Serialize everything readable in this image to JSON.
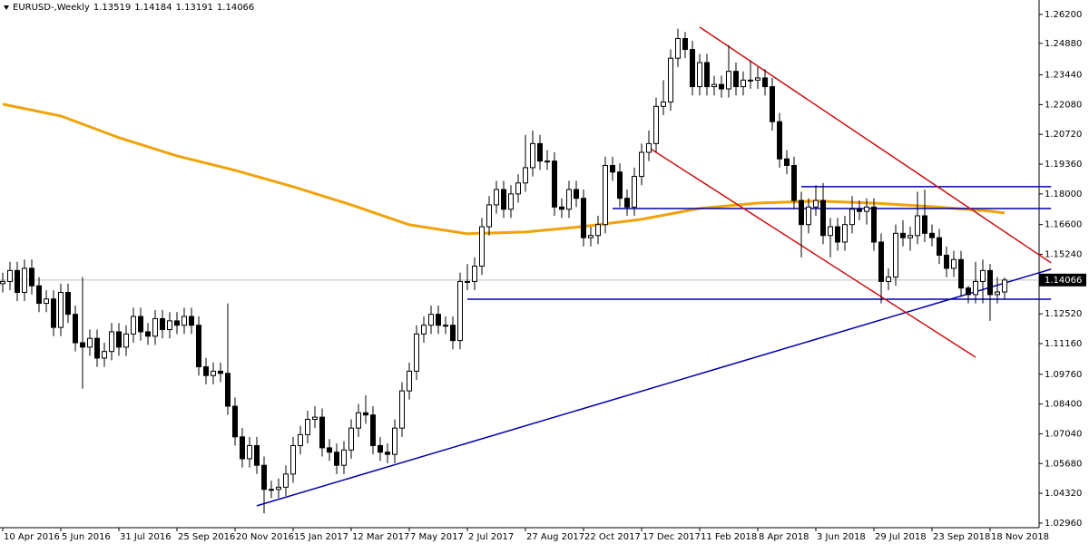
{
  "chart_data": {
    "type": "candlestick",
    "title": "EURUSD-,Weekly",
    "up_color": "#ffffff",
    "down_color": "#000000",
    "categories": [
      "10 Apr 2016",
      null,
      null,
      null,
      null,
      null,
      null,
      null,
      "5 Jun 2016",
      null,
      null,
      null,
      null,
      null,
      null,
      null,
      "31 Jul 2016",
      null,
      null,
      null,
      null,
      null,
      null,
      null,
      "25 Sep 2016",
      null,
      null,
      null,
      null,
      null,
      null,
      null,
      "20 Nov 2016",
      null,
      null,
      null,
      null,
      null,
      null,
      null,
      "15 Jan 2017",
      null,
      null,
      null,
      null,
      null,
      null,
      null,
      "12 Mar 2017",
      null,
      null,
      null,
      null,
      null,
      null,
      null,
      "7 May 2017",
      null,
      null,
      null,
      null,
      null,
      null,
      null,
      "2 Jul 2017",
      null,
      null,
      null,
      null,
      null,
      null,
      null,
      "27 Aug 2017",
      null,
      null,
      null,
      null,
      null,
      null,
      null,
      "22 Oct 2017",
      null,
      null,
      null,
      null,
      null,
      null,
      null,
      "17 Dec 2017",
      null,
      null,
      null,
      null,
      null,
      null,
      null,
      "11 Feb 2018",
      null,
      null,
      null,
      null,
      null,
      null,
      null,
      "8 Apr 2018",
      null,
      null,
      null,
      null,
      null,
      null,
      null,
      "3 Jun 2018",
      null,
      null,
      null,
      null,
      null,
      null,
      null,
      "29 Jul 2018",
      null,
      null,
      null,
      null,
      null,
      null,
      null,
      "23 Sep 2018",
      null,
      null,
      null,
      null,
      null,
      null,
      null,
      "18 Nov 2018",
      null,
      null
    ],
    "open": [
      1.139,
      1.14,
      1.145,
      1.135,
      1.146,
      1.138,
      1.13,
      1.132,
      1.119,
      1.135,
      1.125,
      1.112,
      1.11,
      1.114,
      1.105,
      1.108,
      1.117,
      1.11,
      1.116,
      1.124,
      1.117,
      1.115,
      1.123,
      1.118,
      1.122,
      1.12,
      1.124,
      1.12,
      1.101,
      1.097,
      1.099,
      1.098,
      1.083,
      1.069,
      1.059,
      1.065,
      1.056,
      1.045,
      1.045,
      1.046,
      1.052,
      1.065,
      1.07,
      1.077,
      1.078,
      1.064,
      1.062,
      1.056,
      1.063,
      1.073,
      1.08,
      1.079,
      1.065,
      1.062,
      1.061,
      1.073,
      1.09,
      1.099,
      1.116,
      1.12,
      1.125,
      1.12,
      1.12,
      1.113,
      1.14,
      1.14,
      1.147,
      1.165,
      1.175,
      1.182,
      1.173,
      1.18,
      1.185,
      1.192,
      1.203,
      1.195,
      1.195,
      1.174,
      1.173,
      1.182,
      1.178,
      1.16,
      1.161,
      1.166,
      1.193,
      1.19,
      1.178,
      1.174,
      1.188,
      1.199,
      1.203,
      1.22,
      1.222,
      1.242,
      1.251,
      1.246,
      1.229,
      1.24,
      1.229,
      1.23,
      1.228,
      1.236,
      1.229,
      1.232,
      1.232,
      1.233,
      1.229,
      1.213,
      1.196,
      1.193,
      1.177,
      1.166,
      1.174,
      1.177,
      1.161,
      1.165,
      1.158,
      1.166,
      1.173,
      1.172,
      1.174,
      1.158,
      1.14,
      1.142,
      1.162,
      1.16,
      1.161,
      1.17,
      1.162,
      1.16,
      1.152,
      1.146,
      1.15,
      1.137,
      1.134,
      1.14,
      1.145,
      1.134,
      1.13519
    ],
    "high": [
      1.144,
      1.149,
      1.149,
      1.15,
      1.15,
      1.142,
      1.136,
      1.136,
      1.139,
      1.139,
      1.129,
      1.142,
      1.118,
      1.118,
      1.112,
      1.121,
      1.121,
      1.12,
      1.128,
      1.128,
      1.121,
      1.127,
      1.127,
      1.126,
      1.126,
      1.128,
      1.128,
      1.124,
      1.105,
      1.103,
      1.103,
      1.13,
      1.087,
      1.073,
      1.069,
      1.069,
      1.06,
      1.049,
      1.05,
      1.056,
      1.069,
      1.074,
      1.081,
      1.083,
      1.082,
      1.068,
      1.066,
      1.067,
      1.077,
      1.084,
      1.088,
      1.083,
      1.069,
      1.066,
      1.077,
      1.094,
      1.103,
      1.12,
      1.124,
      1.129,
      1.129,
      1.124,
      1.124,
      1.144,
      1.148,
      1.151,
      1.169,
      1.179,
      1.186,
      1.186,
      1.184,
      1.189,
      1.207,
      1.209,
      1.207,
      1.2,
      1.199,
      1.178,
      1.186,
      1.186,
      1.182,
      1.165,
      1.17,
      1.197,
      1.197,
      1.194,
      1.182,
      1.192,
      1.203,
      1.209,
      1.224,
      1.232,
      1.246,
      1.2555,
      1.254,
      1.25,
      1.244,
      1.244,
      1.234,
      1.234,
      1.248,
      1.24,
      1.236,
      1.241,
      1.238,
      1.237,
      1.233,
      1.217,
      1.2,
      1.197,
      1.181,
      1.178,
      1.184,
      1.185,
      1.169,
      1.169,
      1.17,
      1.179,
      1.177,
      1.178,
      1.178,
      1.162,
      1.146,
      1.166,
      1.168,
      1.165,
      1.181,
      1.182,
      1.166,
      1.164,
      1.156,
      1.154,
      1.154,
      1.138,
      1.149,
      1.15,
      1.148,
      1.142,
      1.14184
    ],
    "low": [
      1.135,
      1.136,
      1.131,
      1.131,
      1.134,
      1.126,
      1.126,
      1.115,
      1.115,
      1.121,
      1.108,
      1.091,
      1.106,
      1.101,
      1.101,
      1.104,
      1.106,
      1.106,
      1.112,
      1.113,
      1.111,
      1.111,
      1.114,
      1.114,
      1.116,
      1.116,
      1.116,
      1.097,
      1.093,
      1.093,
      1.094,
      1.079,
      1.065,
      1.055,
      1.055,
      1.052,
      1.034,
      1.041,
      1.041,
      1.042,
      1.048,
      1.061,
      1.066,
      1.073,
      1.06,
      1.058,
      1.052,
      1.052,
      1.059,
      1.069,
      1.075,
      1.061,
      1.058,
      1.057,
      1.057,
      1.069,
      1.086,
      1.095,
      1.112,
      1.116,
      1.116,
      1.116,
      1.109,
      1.109,
      1.136,
      1.136,
      1.143,
      1.161,
      1.171,
      1.169,
      1.169,
      1.176,
      1.181,
      1.188,
      1.191,
      1.191,
      1.17,
      1.169,
      1.169,
      1.174,
      1.156,
      1.156,
      1.157,
      1.162,
      1.186,
      1.174,
      1.17,
      1.17,
      1.184,
      1.195,
      1.199,
      1.216,
      1.218,
      1.238,
      1.242,
      1.225,
      1.225,
      1.225,
      1.225,
      1.224,
      1.224,
      1.225,
      1.225,
      1.228,
      1.228,
      1.225,
      1.209,
      1.192,
      1.189,
      1.173,
      1.151,
      1.162,
      1.17,
      1.157,
      1.151,
      1.154,
      1.154,
      1.162,
      1.168,
      1.166,
      1.154,
      1.13,
      1.136,
      1.138,
      1.156,
      1.154,
      1.157,
      1.158,
      1.156,
      1.148,
      1.142,
      1.142,
      1.133,
      1.13,
      1.13,
      1.13,
      1.122,
      1.13,
      1.13191
    ],
    "close": [
      1.14,
      1.145,
      1.135,
      1.146,
      1.138,
      1.13,
      1.132,
      1.119,
      1.135,
      1.125,
      1.112,
      1.11,
      1.114,
      1.105,
      1.108,
      1.117,
      1.11,
      1.116,
      1.124,
      1.117,
      1.115,
      1.123,
      1.118,
      1.122,
      1.12,
      1.124,
      1.12,
      1.101,
      1.097,
      1.099,
      1.098,
      1.083,
      1.069,
      1.059,
      1.065,
      1.056,
      1.045,
      1.045,
      1.046,
      1.052,
      1.065,
      1.07,
      1.077,
      1.078,
      1.064,
      1.062,
      1.056,
      1.063,
      1.073,
      1.08,
      1.079,
      1.065,
      1.062,
      1.061,
      1.073,
      1.09,
      1.099,
      1.116,
      1.12,
      1.125,
      1.12,
      1.12,
      1.113,
      1.14,
      1.14,
      1.147,
      1.165,
      1.175,
      1.182,
      1.173,
      1.18,
      1.185,
      1.192,
      1.203,
      1.195,
      1.195,
      1.174,
      1.173,
      1.182,
      1.178,
      1.16,
      1.161,
      1.166,
      1.193,
      1.19,
      1.178,
      1.174,
      1.188,
      1.199,
      1.203,
      1.22,
      1.222,
      1.242,
      1.251,
      1.246,
      1.229,
      1.24,
      1.229,
      1.23,
      1.228,
      1.236,
      1.229,
      1.232,
      1.232,
      1.233,
      1.229,
      1.213,
      1.196,
      1.193,
      1.177,
      1.166,
      1.174,
      1.177,
      1.161,
      1.165,
      1.158,
      1.166,
      1.173,
      1.172,
      1.174,
      1.158,
      1.14,
      1.142,
      1.162,
      1.16,
      1.161,
      1.17,
      1.162,
      1.16,
      1.152,
      1.146,
      1.15,
      1.137,
      1.134,
      1.14,
      1.145,
      1.134,
      1.13519,
      1.14066
    ],
    "ylim": [
      1.0275,
      1.2686
    ],
    "yticks": [
      {
        "value": 1.262,
        "label": "1.26200"
      },
      {
        "value": 1.2488,
        "label": "1.24880"
      },
      {
        "value": 1.2344,
        "label": "1.23440"
      },
      {
        "value": 1.2208,
        "label": "1.22080"
      },
      {
        "value": 1.2072,
        "label": "1.20720"
      },
      {
        "value": 1.1936,
        "label": "1.19360"
      },
      {
        "value": 1.18,
        "label": "1.18000"
      },
      {
        "value": 1.166,
        "label": "1.16600"
      },
      {
        "value": 1.1524,
        "label": "1.15240"
      },
      {
        "value": 1.1252,
        "label": "1.12520"
      },
      {
        "value": 1.1116,
        "label": "1.11160"
      },
      {
        "value": 1.0976,
        "label": "1.09760"
      },
      {
        "value": 1.084,
        "label": "1.08400"
      },
      {
        "value": 1.0704,
        "label": "1.07040"
      },
      {
        "value": 1.0568,
        "label": "1.05680"
      },
      {
        "value": 1.0432,
        "label": "1.04320"
      },
      {
        "value": 1.0296,
        "label": "1.02960"
      }
    ],
    "overlays": [
      {
        "color": "#f0a30a",
        "width": 3,
        "x": [
          0,
          8,
          16,
          24,
          32,
          40,
          48,
          56,
          64,
          72,
          80,
          88,
          96,
          104,
          112,
          120,
          128,
          136,
          138
        ],
        "values": [
          1.221,
          1.2156,
          1.2057,
          1.1974,
          1.1908,
          1.1833,
          1.175,
          1.1659,
          1.1618,
          1.1626,
          1.1651,
          1.1684,
          1.1734,
          1.1758,
          1.1767,
          1.1758,
          1.1742,
          1.1721,
          1.1713
        ]
      },
      {
        "color": "#0000aa",
        "width": 1.5,
        "x": [
          35,
          144.4
        ],
        "values": [
          1.0375,
          1.1456
        ]
      },
      {
        "color": "#0000aa",
        "width": 1.5,
        "x": [
          64,
          144.4
        ],
        "values": [
          1.1319,
          1.1319
        ]
      },
      {
        "color": "#0000aa",
        "width": 1.5,
        "x": [
          84,
          144.4
        ],
        "values": [
          1.1733,
          1.1733
        ]
      },
      {
        "color": "#0000aa",
        "width": 1.5,
        "x": [
          110,
          144.4
        ],
        "values": [
          1.1833,
          1.1833
        ]
      },
      {
        "color": "#cc1111",
        "width": 1.5,
        "x": [
          96,
          144.4
        ],
        "values": [
          1.2562,
          1.1485
        ]
      },
      {
        "color": "#cc1111",
        "width": 1.5,
        "x": [
          89,
          134
        ],
        "values": [
          1.2011,
          1.1054
        ]
      }
    ]
  }
}
